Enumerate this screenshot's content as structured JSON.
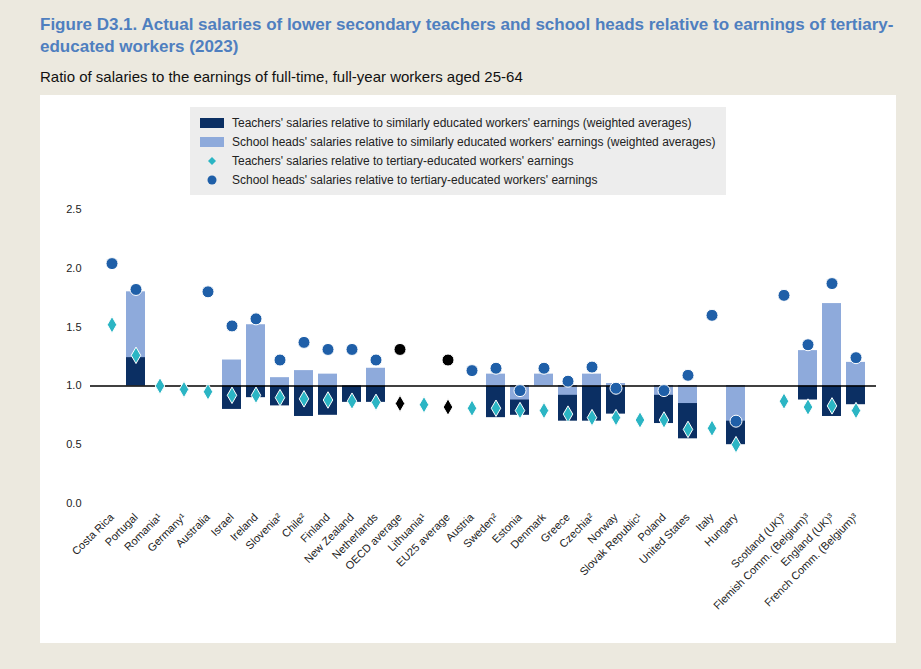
{
  "chart_data": {
    "type": "bar",
    "title": "Figure D3.1. Actual salaries of lower secondary teachers and school heads relative to earnings of tertiary-educated workers (2023)",
    "subtitle": "Ratio of salaries to the earnings of full-time, full-year workers aged 25-64",
    "categories": [
      "Costa Rica",
      "Portugal",
      "Romania¹",
      "Germany¹",
      "Australia",
      "Israel",
      "Ireland",
      "Slovenia²",
      "Chile²",
      "Finland",
      "New Zealand",
      "Netherlands",
      "OECD average",
      "Lithuania¹",
      "EU25 average",
      "Austria",
      "Sweden²",
      "Estonia",
      "Denmark",
      "Greece",
      "Czechia²",
      "Norway",
      "Slovak Republic¹",
      "Poland",
      "United States",
      "Italy",
      "Hungary",
      null,
      "Scotland (UK)³",
      "Flemish Comm. (Belgium)³",
      "England (UK)³",
      "French Comm. (Belgium)³"
    ],
    "series": [
      {
        "name": "Teachers' salaries relative to similarly educated workers' earnings (weighted averages)",
        "type": "bar",
        "color": "#0B2F63",
        "values": [
          null,
          1.24,
          null,
          null,
          null,
          0.8,
          0.9,
          0.83,
          0.74,
          0.75,
          0.86,
          0.86,
          null,
          null,
          null,
          null,
          0.73,
          0.75,
          null,
          0.7,
          0.7,
          0.76,
          null,
          0.68,
          0.55,
          null,
          0.5,
          null,
          null,
          0.88,
          0.74,
          0.84
        ]
      },
      {
        "name": "School heads' salaries relative to similarly educated workers' earnings (weighted averages)",
        "type": "bar",
        "color": "#8EAADB",
        "values": [
          null,
          1.8,
          null,
          null,
          null,
          1.22,
          1.52,
          1.07,
          1.13,
          1.1,
          null,
          1.15,
          null,
          null,
          null,
          null,
          1.1,
          0.88,
          1.1,
          0.92,
          1.1,
          1.02,
          null,
          0.92,
          0.85,
          null,
          0.7,
          null,
          null,
          1.3,
          1.7,
          1.2
        ]
      },
      {
        "name": "Teachers' salaries relative to tertiary-educated workers' earnings",
        "type": "scatter",
        "marker": "diamond",
        "color": "#2BB5C4",
        "colors": [
          "#2BB5C4",
          "#2BB5C4",
          "#2BB5C4",
          "#2BB5C4",
          "#2BB5C4",
          "#2BB5C4",
          "#2BB5C4",
          "#2BB5C4",
          "#2BB5C4",
          "#2BB5C4",
          "#2BB5C4",
          "#2BB5C4",
          "#000000",
          "#2BB5C4",
          "#000000",
          "#2BB5C4",
          "#2BB5C4",
          "#2BB5C4",
          "#2BB5C4",
          "#2BB5C4",
          "#2BB5C4",
          "#2BB5C4",
          "#2BB5C4",
          "#2BB5C4",
          "#2BB5C4",
          "#2BB5C4",
          "#2BB5C4",
          "#2BB5C4",
          "#2BB5C4",
          "#2BB5C4",
          "#2BB5C4",
          "#2BB5C4"
        ],
        "values": [
          1.52,
          1.26,
          1.0,
          0.97,
          0.95,
          0.92,
          0.92,
          0.9,
          0.89,
          0.88,
          0.87,
          0.86,
          0.85,
          0.84,
          0.82,
          0.81,
          0.81,
          0.79,
          0.79,
          0.76,
          0.73,
          0.73,
          0.71,
          0.71,
          0.63,
          0.64,
          0.5,
          null,
          0.87,
          0.82,
          0.83,
          0.79
        ]
      },
      {
        "name": "School heads' salaries relative to tertiary-educated workers' earnings",
        "type": "scatter",
        "marker": "circle",
        "color": "#1F5FA8",
        "colors": [
          "#1F5FA8",
          "#1F5FA8",
          "#1F5FA8",
          "#1F5FA8",
          "#1F5FA8",
          "#1F5FA8",
          "#1F5FA8",
          "#1F5FA8",
          "#1F5FA8",
          "#1F5FA8",
          "#1F5FA8",
          "#1F5FA8",
          "#000000",
          "#1F5FA8",
          "#000000",
          "#1F5FA8",
          "#1F5FA8",
          "#1F5FA8",
          "#1F5FA8",
          "#1F5FA8",
          "#1F5FA8",
          "#1F5FA8",
          "#1F5FA8",
          "#1F5FA8",
          "#1F5FA8",
          "#1F5FA8",
          "#1F5FA8",
          "#1F5FA8",
          "#1F5FA8",
          "#1F5FA8",
          "#1F5FA8",
          "#1F5FA8"
        ],
        "values": [
          2.04,
          1.82,
          null,
          null,
          1.8,
          1.51,
          1.57,
          1.22,
          1.37,
          1.31,
          1.31,
          1.22,
          1.31,
          null,
          1.22,
          1.13,
          1.15,
          0.96,
          1.15,
          1.04,
          1.16,
          0.98,
          null,
          0.96,
          1.09,
          1.6,
          0.7,
          null,
          1.77,
          1.35,
          1.87,
          1.24
        ]
      }
    ],
    "ylim": [
      0,
      2.5
    ],
    "yticks": [
      {
        "value": 0,
        "label": "0.0"
      },
      {
        "value": 0.5,
        "label": "0.5"
      },
      {
        "value": 1,
        "label": "1.0"
      },
      {
        "value": 1.5,
        "label": "1.5"
      },
      {
        "value": 2,
        "label": "2.0"
      },
      {
        "value": 2.5,
        "label": "2.5"
      }
    ],
    "baseline": 1,
    "grid": false,
    "legend": "top-left"
  }
}
